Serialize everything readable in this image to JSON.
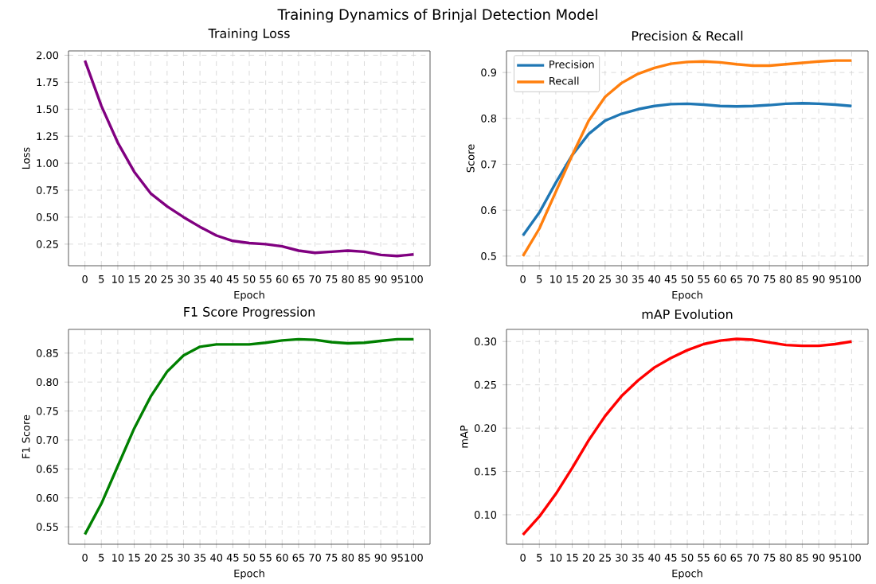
{
  "chart_data": [
    {
      "type": "line",
      "title": "Training Loss",
      "xlabel": "Epoch",
      "ylabel": "Loss",
      "annotations": [
        "Training Dynamics of Brinjal Detection Model"
      ],
      "x": [
        0,
        5,
        10,
        15,
        20,
        25,
        30,
        35,
        40,
        45,
        50,
        55,
        60,
        65,
        70,
        75,
        80,
        85,
        90,
        95,
        100
      ],
      "values": [
        1.95,
        1.53,
        1.19,
        0.92,
        0.72,
        0.6,
        0.5,
        0.41,
        0.33,
        0.28,
        0.26,
        0.25,
        0.23,
        0.19,
        0.17,
        0.18,
        0.19,
        0.18,
        0.15,
        0.14,
        0.155
      ],
      "color": "#800080",
      "xlim": [
        -5,
        105
      ],
      "xticks": [
        0,
        5,
        10,
        15,
        20,
        25,
        30,
        35,
        40,
        45,
        50,
        55,
        60,
        65,
        70,
        75,
        80,
        85,
        90,
        95,
        100
      ],
      "ylim": [
        0.05,
        2.04
      ],
      "yticks": [
        0.25,
        {
          "value": 0.5,
          "label": "0.50"
        },
        0.75,
        {
          "value": 1,
          "label": "1.00"
        },
        1.25,
        {
          "value": 1.5,
          "label": "1.50"
        },
        1.75,
        {
          "value": 2,
          "label": "2.00"
        }
      ],
      "grid": true
    },
    {
      "type": "line",
      "title": "Precision & Recall",
      "xlabel": "Epoch",
      "ylabel": "Score",
      "x": [
        0,
        5,
        10,
        15,
        20,
        25,
        30,
        35,
        40,
        45,
        50,
        55,
        60,
        65,
        70,
        75,
        80,
        85,
        90,
        95,
        100
      ],
      "series": [
        {
          "name": "Precision",
          "color": "#1f77b4",
          "values": [
            0.545,
            0.595,
            0.66,
            0.72,
            0.766,
            0.795,
            0.81,
            0.82,
            0.827,
            0.831,
            0.832,
            0.83,
            0.827,
            0.826,
            0.827,
            0.829,
            0.832,
            0.833,
            0.832,
            0.83,
            0.827
          ]
        },
        {
          "name": "Recall",
          "color": "#ff7f0e",
          "values": [
            0.5,
            0.56,
            0.64,
            0.72,
            0.795,
            0.847,
            0.877,
            0.897,
            0.91,
            0.919,
            0.923,
            0.924,
            0.922,
            0.918,
            0.915,
            0.915,
            0.918,
            0.921,
            0.924,
            0.926,
            0.926
          ]
        }
      ],
      "xlim": [
        -5,
        105
      ],
      "xticks": [
        0,
        5,
        10,
        15,
        20,
        25,
        30,
        35,
        40,
        45,
        50,
        55,
        60,
        65,
        70,
        75,
        80,
        85,
        90,
        95,
        100
      ],
      "ylim": [
        0.479,
        0.947
      ],
      "yticks": [
        0.5,
        0.6,
        0.7,
        0.8,
        0.9
      ],
      "grid": true,
      "legend": "top left"
    },
    {
      "type": "line",
      "title": "F1 Score Progression",
      "xlabel": "Epoch",
      "ylabel": "F1 Score",
      "x": [
        0,
        5,
        10,
        15,
        20,
        25,
        30,
        35,
        40,
        45,
        50,
        55,
        60,
        65,
        70,
        75,
        80,
        85,
        90,
        95,
        100
      ],
      "values": [
        0.537,
        0.59,
        0.655,
        0.72,
        0.775,
        0.818,
        0.846,
        0.861,
        0.865,
        0.865,
        0.865,
        0.868,
        0.872,
        0.874,
        0.873,
        0.869,
        0.867,
        0.868,
        0.871,
        0.874,
        0.874
      ],
      "color": "#008000",
      "xlim": [
        -5,
        105
      ],
      "xticks": [
        0,
        5,
        10,
        15,
        20,
        25,
        30,
        35,
        40,
        45,
        50,
        55,
        60,
        65,
        70,
        75,
        80,
        85,
        90,
        95,
        100
      ],
      "ylim": [
        0.52,
        0.891
      ],
      "yticks": [
        0.55,
        {
          "value": 0.6,
          "label": "0.60"
        },
        0.65,
        {
          "value": 0.7,
          "label": "0.70"
        },
        0.75,
        {
          "value": 0.8,
          "label": "0.80"
        },
        0.85
      ],
      "grid": true
    },
    {
      "type": "line",
      "title": "mAP Evolution",
      "xlabel": "Epoch",
      "ylabel": "mAP",
      "x": [
        0,
        5,
        10,
        15,
        20,
        25,
        30,
        35,
        40,
        45,
        50,
        55,
        60,
        65,
        70,
        75,
        80,
        85,
        90,
        95,
        100
      ],
      "values": [
        0.077,
        0.098,
        0.124,
        0.154,
        0.186,
        0.214,
        0.237,
        0.255,
        0.27,
        0.281,
        0.29,
        0.297,
        0.301,
        0.303,
        0.302,
        0.299,
        0.296,
        0.295,
        0.295,
        0.297,
        0.3
      ],
      "color": "#ff0000",
      "xlim": [
        -5,
        105
      ],
      "xticks": [
        0,
        5,
        10,
        15,
        20,
        25,
        30,
        35,
        40,
        45,
        50,
        55,
        60,
        65,
        70,
        75,
        80,
        85,
        90,
        95,
        100
      ],
      "ylim": [
        0.066,
        0.314
      ],
      "yticks": [
        {
          "value": 0.1,
          "label": "0.10"
        },
        0.15,
        {
          "value": 0.2,
          "label": "0.20"
        },
        0.25,
        {
          "value": 0.3,
          "label": "0.30"
        }
      ],
      "grid": true
    }
  ]
}
